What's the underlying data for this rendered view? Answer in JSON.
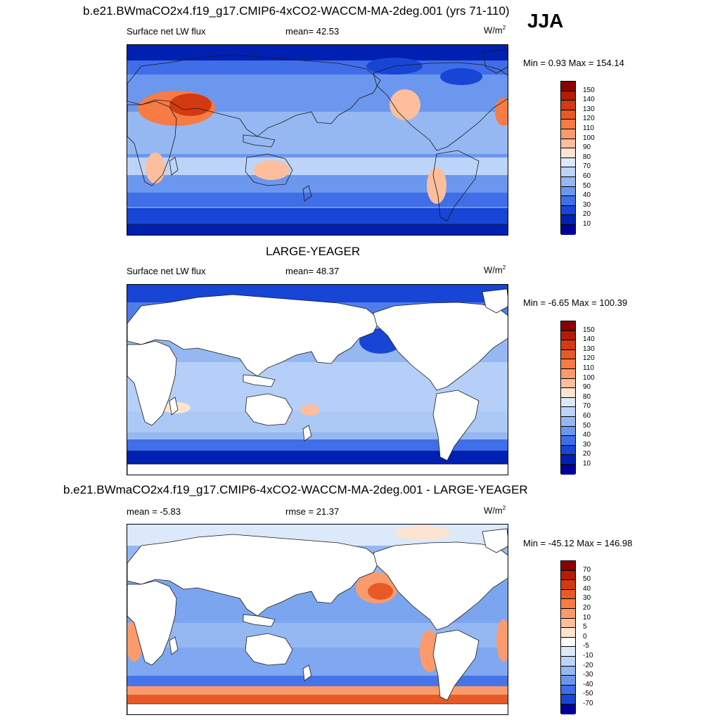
{
  "season": "JJA",
  "panels": [
    {
      "title": "b.e21.BWmaCO2x4.f19_g17.CMIP6-4xCO2-WACCM-MA-2deg.001 (yrs 71-110)",
      "left_label": "Surface net LW flux",
      "center_label": "mean=  42.53",
      "unit_text": "W/m",
      "unit_sup": "2",
      "minmax": "Min =   0.93 Max = 154.14",
      "map_name": "model-flux-map",
      "land_masked": false,
      "colorbar": {
        "labels": [
          "150",
          "140",
          "130",
          "120",
          "110",
          "100",
          "90",
          "80",
          "70",
          "60",
          "50",
          "40",
          "30",
          "20",
          "10"
        ],
        "colors": [
          "#8b0000",
          "#b31d05",
          "#d33a12",
          "#e85a25",
          "#f77b44",
          "#fb9b6d",
          "#fcbe9c",
          "#fce4d0",
          "#dbe9fb",
          "#bdd4f9",
          "#95b8f3",
          "#6c97ee",
          "#3f6ee8",
          "#1745d6",
          "#0020b2",
          "#00009a"
        ]
      }
    },
    {
      "title": "LARGE-YEAGER",
      "left_label": "Surface net LW flux",
      "center_label": "mean=  48.37",
      "unit_text": "W/m",
      "unit_sup": "2",
      "minmax": "Min =  -6.65 Max = 100.39",
      "map_name": "obs-flux-map",
      "land_masked": true,
      "colorbar": {
        "labels": [
          "150",
          "140",
          "130",
          "120",
          "110",
          "100",
          "90",
          "80",
          "70",
          "60",
          "50",
          "40",
          "30",
          "20",
          "10"
        ],
        "colors": [
          "#8b0000",
          "#b31d05",
          "#d33a12",
          "#e85a25",
          "#f77b44",
          "#fb9b6d",
          "#fcbe9c",
          "#fce4d0",
          "#dbe9fb",
          "#bdd4f9",
          "#95b8f3",
          "#6c97ee",
          "#3f6ee8",
          "#1745d6",
          "#0020b2",
          "#00009a"
        ]
      }
    },
    {
      "title": "b.e21.BWmaCO2x4.f19_g17.CMIP6-4xCO2-WACCM-MA-2deg.001 - LARGE-YEAGER",
      "left_label": "mean =  -5.83",
      "center_label": "rmse =  21.37",
      "unit_text": "W/m",
      "unit_sup": "2",
      "minmax": "Min = -45.12 Max = 146.98",
      "map_name": "difference-map",
      "land_masked": true,
      "colorbar": {
        "labels": [
          "70",
          "50",
          "40",
          "30",
          "20",
          "10",
          "5",
          "0",
          "-5",
          "-10",
          "-20",
          "-30",
          "-40",
          "-50",
          "-70"
        ],
        "colors": [
          "#8b0000",
          "#b31d05",
          "#d33a12",
          "#e85a25",
          "#f77b44",
          "#fb9b6d",
          "#fcbe9c",
          "#fce4d0",
          "#ffffff",
          "#dbe9fb",
          "#bdd4f9",
          "#95b8f3",
          "#6c97ee",
          "#3f6ee8",
          "#1745d6",
          "#00009a"
        ]
      }
    }
  ]
}
